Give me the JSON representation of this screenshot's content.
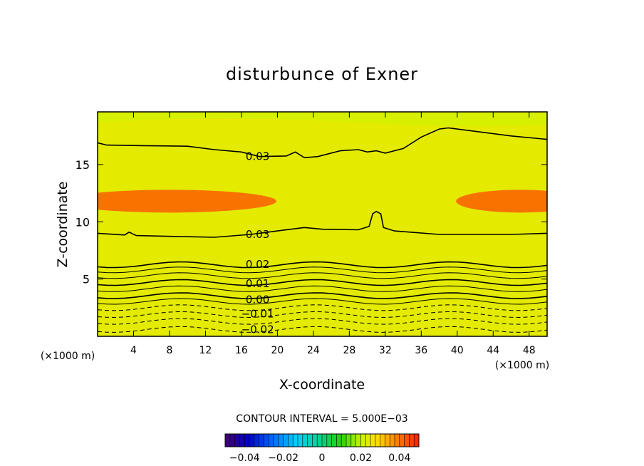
{
  "chart_data": {
    "type": "heatmap",
    "title": "disturbunce of Exner",
    "xlabel": "X-coordinate",
    "ylabel": "Z-coordinate",
    "xunit": "(×1000 m)",
    "xunit_bottom": "(×1000 m)",
    "xlim": [
      0,
      50
    ],
    "ylim": [
      0,
      19.6
    ],
    "xticks": [
      4,
      8,
      12,
      16,
      20,
      24,
      28,
      32,
      36,
      40,
      44,
      48
    ],
    "yticks": [
      5,
      10,
      15
    ],
    "grid": false,
    "contour_interval_label": "CONTOUR INTERVAL = 5.000E−03",
    "contour_labels": [
      {
        "text": "0.03",
        "x": 17.8,
        "z": 15.7
      },
      {
        "text": "0.03",
        "x": 17.8,
        "z": 8.9
      },
      {
        "text": "0.02",
        "x": 17.8,
        "z": 6.3
      },
      {
        "text": "0.01",
        "x": 17.8,
        "z": 4.6
      },
      {
        "text": "0.00",
        "x": 17.8,
        "z": 3.2
      },
      {
        "text": "−0.01",
        "x": 17.8,
        "z": 1.95
      },
      {
        "text": "−0.02",
        "x": 17.8,
        "z": 0.6
      }
    ],
    "colorbar": {
      "range": [
        -0.05,
        0.05
      ],
      "ticks": [
        {
          "value": -0.04,
          "label": "−0.04"
        },
        {
          "value": -0.02,
          "label": "−0.02"
        },
        {
          "value": 0,
          "label": "0"
        },
        {
          "value": 0.02,
          "label": "0.02"
        },
        {
          "value": 0.04,
          "label": "0.04"
        }
      ]
    }
  }
}
